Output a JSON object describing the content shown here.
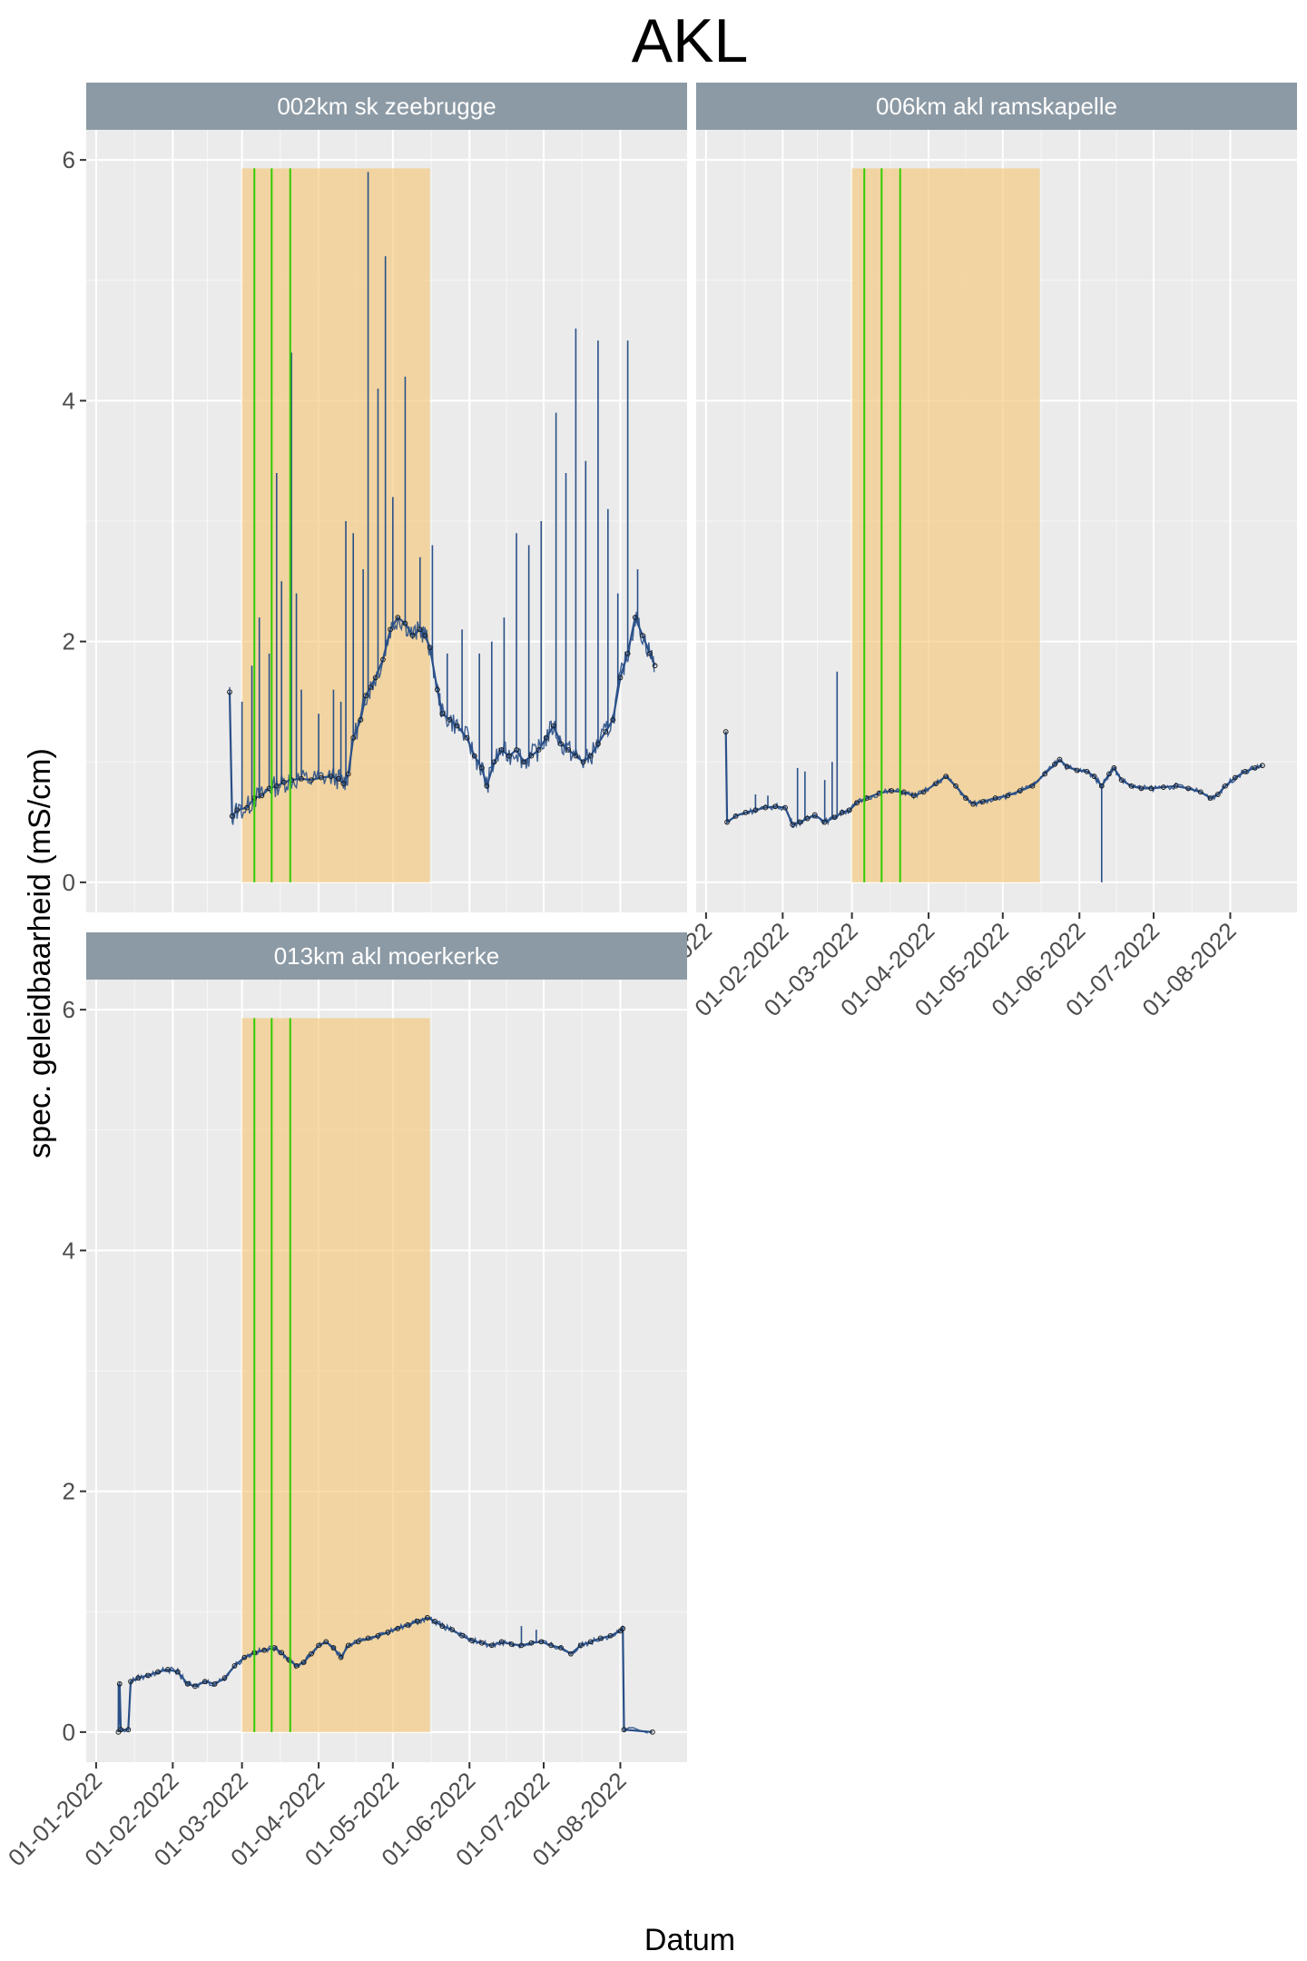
{
  "title": "AKL",
  "xlabel": "Datum",
  "ylabel": "spec. geleidbaarheid (mS/cm)",
  "colors": {
    "panel_bg": "#ebebeb",
    "grid": "#ffffff",
    "strip_bg": "#8c9aa5",
    "strip_text": "#ffffff",
    "series": "#2a5088",
    "highlight": "#f5c77a",
    "vline": "#33cc00",
    "points": "#1a1a1a"
  },
  "chart_data": {
    "type": "line",
    "ylim": [
      0,
      6
    ],
    "y_ticks": [
      0,
      2,
      4,
      6
    ],
    "x_ticks": [
      "01-01-2022",
      "01-02-2022",
      "01-03-2022",
      "01-04-2022",
      "01-05-2022",
      "01-06-2022",
      "01-07-2022",
      "01-08-2022"
    ],
    "x_tick_days": [
      0,
      31,
      59,
      90,
      120,
      151,
      181,
      212
    ],
    "xlim_days": [
      -4,
      239
    ],
    "highlight_band": {
      "from": "01-03-2022",
      "to": "16-05-2022",
      "from_day": 59,
      "to_day": 135,
      "ymax": 5.93
    },
    "vlines_days": [
      64,
      71,
      78.5
    ],
    "panels": [
      {
        "strip": "002km sk zeebrugge",
        "series": [
          [
            54,
            1.58
          ],
          [
            55,
            0.55
          ],
          [
            57,
            0.6
          ],
          [
            61,
            0.62
          ],
          [
            64,
            0.7
          ],
          [
            67,
            0.72
          ],
          [
            70,
            0.78
          ],
          [
            73,
            0.8
          ],
          [
            76,
            0.83
          ],
          [
            79,
            0.85
          ],
          [
            83,
            0.86
          ],
          [
            87,
            0.85
          ],
          [
            91,
            0.87
          ],
          [
            95,
            0.88
          ],
          [
            98,
            0.86
          ],
          [
            100,
            0.82
          ],
          [
            102,
            0.9
          ],
          [
            104,
            1.2
          ],
          [
            107,
            1.35
          ],
          [
            109,
            1.55
          ],
          [
            111,
            1.62
          ],
          [
            113,
            1.7
          ],
          [
            116,
            1.85
          ],
          [
            119,
            2.1
          ],
          [
            122,
            2.2
          ],
          [
            125,
            2.15
          ],
          [
            128,
            2.05
          ],
          [
            131,
            2.1
          ],
          [
            133,
            2.05
          ],
          [
            135,
            1.95
          ],
          [
            138,
            1.6
          ],
          [
            140,
            1.4
          ],
          [
            143,
            1.35
          ],
          [
            146,
            1.3
          ],
          [
            150,
            1.2
          ],
          [
            153,
            1.05
          ],
          [
            156,
            0.95
          ],
          [
            158,
            0.8
          ],
          [
            161,
            1.0
          ],
          [
            164,
            1.1
          ],
          [
            167,
            1.05
          ],
          [
            170,
            1.1
          ],
          [
            173,
            1.0
          ],
          [
            176,
            1.05
          ],
          [
            179,
            1.1
          ],
          [
            182,
            1.2
          ],
          [
            185,
            1.3
          ],
          [
            188,
            1.15
          ],
          [
            191,
            1.1
          ],
          [
            194,
            1.05
          ],
          [
            197,
            1.0
          ],
          [
            200,
            1.05
          ],
          [
            203,
            1.15
          ],
          [
            206,
            1.25
          ],
          [
            209,
            1.35
          ],
          [
            212,
            1.7
          ],
          [
            215,
            1.9
          ],
          [
            218,
            2.2
          ],
          [
            221,
            2.05
          ],
          [
            224,
            1.9
          ],
          [
            226,
            1.8
          ]
        ],
        "spikes": [
          [
            59,
            1.5
          ],
          [
            63,
            1.8
          ],
          [
            66,
            2.2
          ],
          [
            70,
            1.9
          ],
          [
            73,
            3.4
          ],
          [
            75,
            2.5
          ],
          [
            79,
            4.4
          ],
          [
            81,
            2.4
          ],
          [
            83,
            1.6
          ],
          [
            90,
            1.4
          ],
          [
            96,
            1.6
          ],
          [
            99,
            1.5
          ],
          [
            101,
            3.0
          ],
          [
            104,
            2.9
          ],
          [
            108,
            2.6
          ],
          [
            110,
            5.9
          ],
          [
            114,
            4.1
          ],
          [
            117,
            5.2
          ],
          [
            120,
            3.2
          ],
          [
            125,
            4.2
          ],
          [
            131,
            2.7
          ],
          [
            136,
            2.8
          ],
          [
            142,
            1.9
          ],
          [
            148,
            2.1
          ],
          [
            155,
            1.9
          ],
          [
            160,
            2.0
          ],
          [
            165,
            2.2
          ],
          [
            170,
            2.9
          ],
          [
            175,
            2.8
          ],
          [
            180,
            3.0
          ],
          [
            186,
            3.9
          ],
          [
            190,
            3.4
          ],
          [
            194,
            4.6
          ],
          [
            198,
            3.5
          ],
          [
            203,
            4.5
          ],
          [
            207,
            3.1
          ],
          [
            211,
            2.4
          ],
          [
            215,
            4.5
          ],
          [
            219,
            2.6
          ]
        ]
      },
      {
        "strip": "006km akl ramskapelle",
        "series": [
          [
            8,
            1.25
          ],
          [
            8.5,
            0.5
          ],
          [
            12,
            0.55
          ],
          [
            16,
            0.58
          ],
          [
            20,
            0.6
          ],
          [
            24,
            0.62
          ],
          [
            28,
            0.63
          ],
          [
            32,
            0.62
          ],
          [
            35,
            0.48
          ],
          [
            38,
            0.5
          ],
          [
            41,
            0.53
          ],
          [
            44,
            0.56
          ],
          [
            48,
            0.5
          ],
          [
            52,
            0.54
          ],
          [
            55,
            0.58
          ],
          [
            58,
            0.6
          ],
          [
            61,
            0.66
          ],
          [
            65,
            0.7
          ],
          [
            70,
            0.74
          ],
          [
            75,
            0.76
          ],
          [
            80,
            0.75
          ],
          [
            84,
            0.72
          ],
          [
            88,
            0.75
          ],
          [
            93,
            0.82
          ],
          [
            97,
            0.88
          ],
          [
            101,
            0.8
          ],
          [
            105,
            0.7
          ],
          [
            108,
            0.65
          ],
          [
            112,
            0.67
          ],
          [
            117,
            0.7
          ],
          [
            122,
            0.72
          ],
          [
            127,
            0.76
          ],
          [
            132,
            0.8
          ],
          [
            137,
            0.9
          ],
          [
            141,
            0.98
          ],
          [
            143,
            1.02
          ],
          [
            146,
            0.96
          ],
          [
            150,
            0.93
          ],
          [
            154,
            0.92
          ],
          [
            157,
            0.88
          ],
          [
            160,
            0.8
          ],
          [
            163,
            0.9
          ],
          [
            165,
            0.95
          ],
          [
            168,
            0.85
          ],
          [
            172,
            0.8
          ],
          [
            176,
            0.78
          ],
          [
            180,
            0.78
          ],
          [
            185,
            0.79
          ],
          [
            190,
            0.8
          ],
          [
            195,
            0.78
          ],
          [
            200,
            0.75
          ],
          [
            204,
            0.7
          ],
          [
            207,
            0.73
          ],
          [
            210,
            0.8
          ],
          [
            214,
            0.87
          ],
          [
            218,
            0.92
          ],
          [
            222,
            0.95
          ],
          [
            225,
            0.97
          ]
        ],
        "spikes": [
          [
            8,
            1.25
          ],
          [
            20,
            0.73
          ],
          [
            25,
            0.72
          ],
          [
            37,
            0.95
          ],
          [
            40,
            0.92
          ],
          [
            48,
            0.85
          ],
          [
            51,
            1.0
          ],
          [
            53,
            1.75
          ],
          [
            160,
            0.0
          ]
        ]
      },
      {
        "strip": "013km akl moerkerke",
        "series": [
          [
            9,
            0.0
          ],
          [
            9.5,
            0.4
          ],
          [
            10,
            0.02
          ],
          [
            13,
            0.02
          ],
          [
            14,
            0.42
          ],
          [
            17,
            0.45
          ],
          [
            21,
            0.47
          ],
          [
            25,
            0.5
          ],
          [
            29,
            0.52
          ],
          [
            33,
            0.5
          ],
          [
            37,
            0.4
          ],
          [
            40,
            0.38
          ],
          [
            44,
            0.42
          ],
          [
            48,
            0.4
          ],
          [
            52,
            0.45
          ],
          [
            56,
            0.55
          ],
          [
            60,
            0.62
          ],
          [
            64,
            0.66
          ],
          [
            68,
            0.68
          ],
          [
            72,
            0.7
          ],
          [
            75,
            0.66
          ],
          [
            78,
            0.6
          ],
          [
            81,
            0.55
          ],
          [
            84,
            0.58
          ],
          [
            87,
            0.65
          ],
          [
            90,
            0.72
          ],
          [
            93,
            0.75
          ],
          [
            96,
            0.7
          ],
          [
            99,
            0.62
          ],
          [
            102,
            0.72
          ],
          [
            106,
            0.75
          ],
          [
            110,
            0.78
          ],
          [
            114,
            0.8
          ],
          [
            118,
            0.83
          ],
          [
            122,
            0.86
          ],
          [
            126,
            0.89
          ],
          [
            130,
            0.92
          ],
          [
            134,
            0.95
          ],
          [
            137,
            0.92
          ],
          [
            140,
            0.88
          ],
          [
            144,
            0.85
          ],
          [
            148,
            0.8
          ],
          [
            152,
            0.76
          ],
          [
            156,
            0.74
          ],
          [
            160,
            0.72
          ],
          [
            164,
            0.75
          ],
          [
            168,
            0.73
          ],
          [
            172,
            0.72
          ],
          [
            176,
            0.74
          ],
          [
            180,
            0.75
          ],
          [
            184,
            0.72
          ],
          [
            188,
            0.7
          ],
          [
            192,
            0.65
          ],
          [
            196,
            0.72
          ],
          [
            200,
            0.75
          ],
          [
            204,
            0.78
          ],
          [
            208,
            0.8
          ],
          [
            212,
            0.84
          ],
          [
            213,
            0.86
          ],
          [
            213.5,
            0.02
          ],
          [
            225,
            0.0
          ]
        ],
        "spikes": [
          [
            9,
            0.4
          ],
          [
            172,
            0.88
          ],
          [
            178,
            0.85
          ]
        ]
      }
    ]
  }
}
